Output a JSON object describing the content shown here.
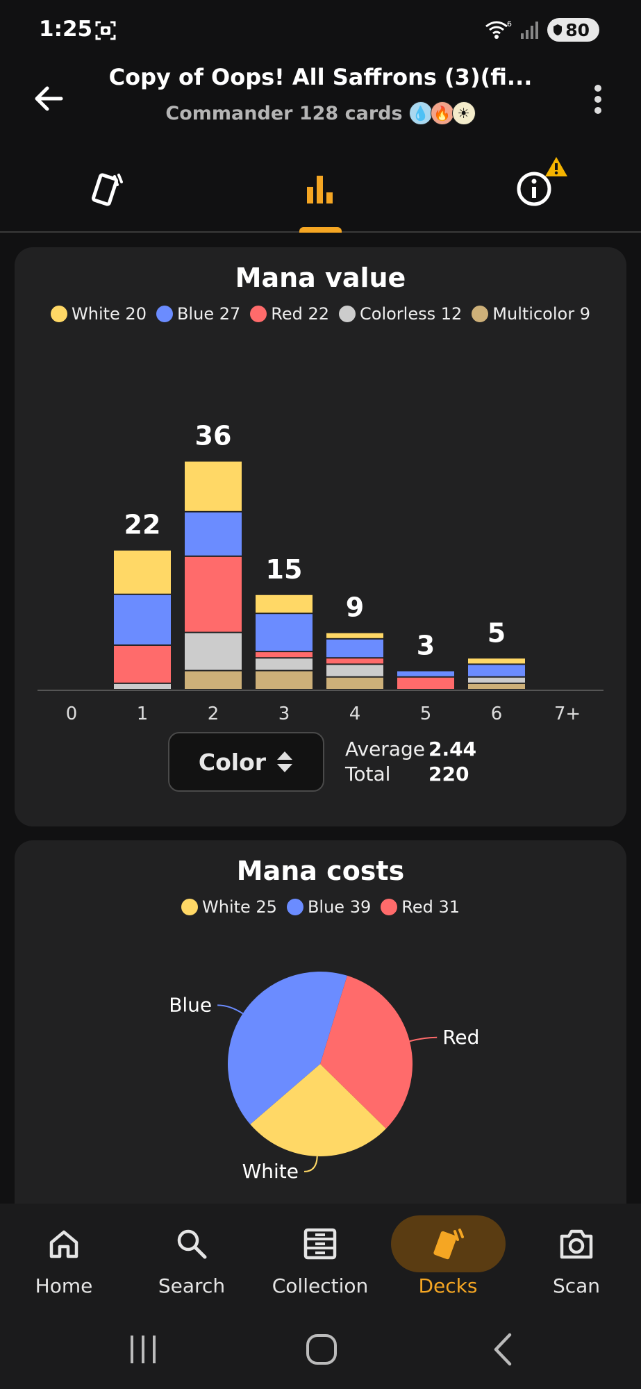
{
  "status_bar": {
    "time": "1:25",
    "battery": "80"
  },
  "header": {
    "title": "Copy of Oops! All Saffrons (3)(fi...",
    "subtitle": "Commander 128 cards",
    "color_identity": [
      "blue",
      "red",
      "white"
    ]
  },
  "tabs": [
    {
      "name": "cards-tab",
      "icon": "cards-icon",
      "active": false
    },
    {
      "name": "stats-tab",
      "icon": "bar-chart-icon",
      "active": true
    },
    {
      "name": "info-tab",
      "icon": "info-icon",
      "active": false,
      "warning": true
    }
  ],
  "mana_value_card": {
    "title": "Mana value",
    "legend": [
      {
        "label": "White 20",
        "color": "#FFD866"
      },
      {
        "label": "Blue 27",
        "color": "#6B8CFF"
      },
      {
        "label": "Red 22",
        "color": "#FF6B6B"
      },
      {
        "label": "Colorless 12",
        "color": "#CCCCCC"
      },
      {
        "label": "Multicolor 9",
        "color": "#CDB079"
      }
    ],
    "selector_label": "Color",
    "average_label": "Average",
    "average_value": "2.44",
    "total_label": "Total",
    "total_value": "220"
  },
  "mana_costs_card": {
    "title": "Mana costs",
    "legend": [
      {
        "label": "White 25",
        "color": "#FFD866"
      },
      {
        "label": "Blue 39",
        "color": "#6B8CFF"
      },
      {
        "label": "Red 31",
        "color": "#FF6B6B"
      }
    ]
  },
  "chart_data": [
    {
      "type": "bar",
      "title": "Mana value",
      "categories": [
        "0",
        "1",
        "2",
        "3",
        "4",
        "5",
        "6",
        "7+"
      ],
      "totals": [
        0,
        22,
        36,
        15,
        9,
        3,
        5,
        0
      ],
      "series": [
        {
          "name": "Multicolor",
          "color": "#CDB079",
          "values": [
            0,
            0,
            3,
            3,
            2,
            0,
            1,
            0
          ]
        },
        {
          "name": "Colorless",
          "color": "#CCCCCC",
          "values": [
            0,
            1,
            6,
            2,
            2,
            0,
            1,
            0
          ]
        },
        {
          "name": "Red",
          "color": "#FF6B6B",
          "values": [
            0,
            6,
            12,
            1,
            1,
            2,
            0,
            0
          ]
        },
        {
          "name": "Blue",
          "color": "#6B8CFF",
          "values": [
            0,
            8,
            7,
            6,
            3,
            1,
            2,
            0
          ]
        },
        {
          "name": "White",
          "color": "#FFD866",
          "values": [
            0,
            7,
            8,
            3,
            1,
            0,
            1,
            0
          ]
        }
      ],
      "ylim": [
        0,
        36
      ]
    },
    {
      "type": "pie",
      "title": "Mana costs",
      "slices": [
        {
          "name": "Red",
          "value": 31,
          "color": "#FF6B6B"
        },
        {
          "name": "White",
          "value": 25,
          "color": "#FFD866"
        },
        {
          "name": "Blue",
          "value": 39,
          "color": "#6B8CFF"
        }
      ]
    }
  ],
  "bottom_nav": [
    {
      "label": "Home",
      "icon": "home-icon",
      "active": false
    },
    {
      "label": "Search",
      "icon": "search-icon",
      "active": false
    },
    {
      "label": "Collection",
      "icon": "collection-icon",
      "active": false
    },
    {
      "label": "Decks",
      "icon": "decks-icon",
      "active": true
    },
    {
      "label": "Scan",
      "icon": "camera-icon",
      "active": false
    }
  ],
  "colors": {
    "accent": "#F5A623",
    "background": "#111112",
    "card": "#212122"
  }
}
